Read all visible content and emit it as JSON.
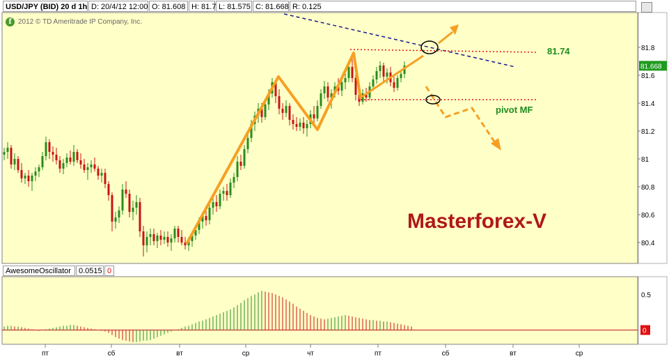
{
  "header": {
    "symbol": "USD/JPY (BID) 20 d 1h",
    "date": "D: 20/4/12 12:00",
    "open": "O: 81.608",
    "high": "H: 81.7",
    "low": "L: 81.575",
    "close": "C: 81.668",
    "range": "R: 0.125"
  },
  "copyright": "2012 © TD Ameritrade IP Company, Inc.",
  "logo_glyph": "f",
  "oscillator": {
    "name": "AwesomeOscillator",
    "value": "0.0515",
    "zero_value": "0",
    "current_label": "0"
  },
  "annotations": {
    "level_label": "81.74",
    "pivot_label": "pivot MF",
    "watermark": "Masterforex-V"
  },
  "colors": {
    "plot_bg": "#ffffc8",
    "bull": "#2a8c1e",
    "bear": "#c81414",
    "orange": "#f5a023",
    "blue_dashed": "#1a1a8c",
    "red_dotted": "#e01010",
    "label_green": "#1e8c1e",
    "watermark": "#b01818"
  },
  "chart_data": [
    {
      "type": "candlestick",
      "ylim": [
        80.25,
        82.05
      ],
      "price_ticks": [
        "81.8",
        "81.6",
        "81.4",
        "81.2",
        "81",
        "80.8",
        "80.6",
        "80.4"
      ],
      "current_price": "81.668",
      "x_labels": [
        "пт",
        "сб",
        "вт",
        "ср",
        "чт",
        "пт",
        "сб",
        "вт",
        "ср"
      ],
      "candles": [
        [
          81.03,
          81.08,
          80.99,
          81.05
        ],
        [
          81.05,
          81.12,
          81.0,
          81.08
        ],
        [
          81.08,
          81.1,
          80.93,
          80.96
        ],
        [
          80.96,
          81.04,
          80.92,
          81.0
        ],
        [
          81.0,
          81.02,
          80.9,
          80.92
        ],
        [
          80.92,
          80.97,
          80.83,
          80.86
        ],
        [
          80.86,
          80.9,
          80.82,
          80.88
        ],
        [
          80.88,
          80.92,
          80.8,
          80.84
        ],
        [
          80.84,
          80.9,
          80.77,
          80.88
        ],
        [
          80.88,
          80.94,
          80.84,
          80.91
        ],
        [
          80.91,
          80.96,
          80.87,
          80.94
        ],
        [
          80.94,
          81.05,
          80.92,
          81.02
        ],
        [
          81.02,
          81.16,
          80.99,
          81.12
        ],
        [
          81.12,
          81.14,
          81.0,
          81.05
        ],
        [
          81.05,
          81.09,
          80.98,
          81.03
        ],
        [
          81.03,
          81.08,
          80.96,
          80.99
        ],
        [
          80.99,
          81.02,
          80.9,
          80.93
        ],
        [
          80.93,
          81.0,
          80.89,
          80.97
        ],
        [
          80.97,
          81.04,
          80.94,
          81.01
        ],
        [
          81.01,
          81.06,
          80.96,
          80.98
        ],
        [
          80.98,
          81.1,
          80.95,
          81.05
        ],
        [
          81.05,
          81.07,
          80.97,
          80.99
        ],
        [
          80.99,
          81.04,
          80.93,
          80.96
        ],
        [
          80.96,
          81.0,
          80.9,
          80.92
        ],
        [
          80.92,
          80.97,
          80.85,
          80.94
        ],
        [
          80.94,
          80.99,
          80.9,
          80.96
        ],
        [
          80.96,
          81.01,
          80.91,
          80.93
        ],
        [
          80.93,
          80.95,
          80.85,
          80.88
        ],
        [
          80.88,
          80.93,
          80.83,
          80.9
        ],
        [
          80.9,
          80.93,
          80.79,
          80.82
        ],
        [
          80.82,
          80.84,
          80.7,
          80.74
        ],
        [
          80.74,
          80.76,
          80.48,
          80.55
        ],
        [
          80.55,
          80.62,
          80.5,
          80.58
        ],
        [
          80.58,
          80.66,
          80.54,
          80.63
        ],
        [
          80.63,
          80.82,
          80.6,
          80.78
        ],
        [
          80.78,
          80.84,
          80.72,
          80.75
        ],
        [
          80.75,
          80.78,
          80.58,
          80.62
        ],
        [
          80.62,
          80.7,
          80.56,
          80.65
        ],
        [
          80.65,
          80.74,
          80.6,
          80.69
        ],
        [
          80.69,
          80.72,
          80.44,
          80.48
        ],
        [
          80.48,
          80.52,
          80.3,
          80.38
        ],
        [
          80.38,
          80.48,
          80.33,
          80.44
        ],
        [
          80.44,
          80.5,
          80.38,
          80.46
        ],
        [
          80.46,
          80.5,
          80.38,
          80.41
        ],
        [
          80.41,
          80.47,
          80.36,
          80.45
        ],
        [
          80.45,
          80.49,
          80.38,
          80.42
        ],
        [
          80.42,
          80.48,
          80.39,
          80.44
        ],
        [
          80.44,
          80.48,
          80.37,
          80.4
        ],
        [
          80.4,
          80.46,
          80.34,
          80.43
        ],
        [
          80.43,
          80.52,
          80.4,
          80.5
        ],
        [
          80.5,
          80.52,
          80.4,
          80.44
        ],
        [
          80.44,
          80.49,
          80.38,
          80.4
        ],
        [
          80.4,
          80.44,
          80.35,
          80.38
        ],
        [
          80.38,
          80.44,
          80.34,
          80.41
        ],
        [
          80.41,
          80.48,
          80.37,
          80.45
        ],
        [
          80.45,
          80.52,
          80.42,
          80.49
        ],
        [
          80.49,
          80.58,
          80.46,
          80.55
        ],
        [
          80.55,
          80.62,
          80.5,
          80.59
        ],
        [
          80.59,
          80.64,
          80.52,
          80.56
        ],
        [
          80.56,
          80.68,
          80.53,
          80.65
        ],
        [
          80.65,
          80.72,
          80.6,
          80.69
        ],
        [
          80.69,
          80.74,
          80.62,
          80.66
        ],
        [
          80.66,
          80.78,
          80.64,
          80.75
        ],
        [
          80.75,
          80.8,
          80.7,
          80.77
        ],
        [
          80.77,
          80.82,
          80.7,
          80.74
        ],
        [
          80.74,
          80.86,
          80.72,
          80.83
        ],
        [
          80.83,
          80.9,
          80.79,
          80.87
        ],
        [
          80.87,
          81.02,
          80.84,
          80.98
        ],
        [
          80.98,
          81.03,
          80.92,
          80.95
        ],
        [
          80.95,
          81.1,
          80.93,
          81.07
        ],
        [
          81.07,
          81.18,
          81.04,
          81.15
        ],
        [
          81.15,
          81.28,
          81.12,
          81.25
        ],
        [
          81.25,
          81.34,
          81.2,
          81.31
        ],
        [
          81.31,
          81.4,
          81.26,
          81.36
        ],
        [
          81.36,
          81.4,
          81.26,
          81.3
        ],
        [
          81.3,
          81.42,
          81.28,
          81.39
        ],
        [
          81.39,
          81.5,
          81.35,
          81.47
        ],
        [
          81.47,
          81.58,
          81.44,
          81.55
        ],
        [
          81.55,
          81.56,
          81.4,
          81.45
        ],
        [
          81.45,
          81.5,
          81.32,
          81.36
        ],
        [
          81.36,
          81.4,
          81.28,
          81.33
        ],
        [
          81.33,
          81.42,
          81.3,
          81.38
        ],
        [
          81.38,
          81.4,
          81.24,
          81.28
        ],
        [
          81.28,
          81.32,
          81.21,
          81.25
        ],
        [
          81.25,
          81.3,
          81.2,
          81.23
        ],
        [
          81.23,
          81.29,
          81.2,
          81.26
        ],
        [
          81.26,
          81.3,
          81.18,
          81.22
        ],
        [
          81.22,
          81.28,
          81.16,
          81.25
        ],
        [
          81.25,
          81.35,
          81.22,
          81.32
        ],
        [
          81.32,
          81.38,
          81.25,
          81.29
        ],
        [
          81.29,
          81.42,
          81.27,
          81.38
        ],
        [
          81.38,
          81.5,
          81.36,
          81.47
        ],
        [
          81.47,
          81.56,
          81.43,
          81.52
        ],
        [
          81.52,
          81.55,
          81.41,
          81.44
        ],
        [
          81.44,
          81.5,
          81.36,
          81.47
        ],
        [
          81.47,
          81.55,
          81.44,
          81.52
        ],
        [
          81.52,
          81.58,
          81.46,
          81.49
        ],
        [
          81.49,
          81.58,
          81.45,
          81.55
        ],
        [
          81.55,
          81.62,
          81.5,
          81.58
        ],
        [
          81.58,
          81.7,
          81.55,
          81.66
        ],
        [
          81.66,
          81.73,
          81.55,
          81.58
        ],
        [
          81.58,
          81.62,
          81.42,
          81.46
        ],
        [
          81.46,
          81.52,
          81.38,
          81.41
        ],
        [
          81.41,
          81.5,
          81.39,
          81.47
        ],
        [
          81.47,
          81.51,
          81.41,
          81.44
        ],
        [
          81.44,
          81.55,
          81.42,
          81.52
        ],
        [
          81.52,
          81.6,
          81.49,
          81.57
        ],
        [
          81.57,
          81.66,
          81.54,
          81.63
        ],
        [
          81.63,
          81.7,
          81.58,
          81.67
        ],
        [
          81.67,
          81.69,
          81.55,
          81.59
        ],
        [
          81.59,
          81.65,
          81.54,
          81.62
        ],
        [
          81.62,
          81.66,
          81.52,
          81.55
        ],
        [
          81.55,
          81.59,
          81.48,
          81.51
        ],
        [
          81.51,
          81.6,
          81.49,
          81.58
        ],
        [
          81.58,
          81.64,
          81.55,
          81.61
        ],
        [
          81.61,
          81.7,
          81.58,
          81.67
        ]
      ]
    },
    {
      "type": "bar",
      "title": "AwesomeOscillator",
      "ylim": [
        -0.2,
        0.75
      ],
      "ticks": [
        "0.5",
        "0"
      ],
      "values": [
        0.05,
        0.06,
        0.06,
        0.05,
        0.05,
        0.04,
        0.03,
        0.02,
        0.01,
        0.0,
        -0.01,
        0.0,
        0.01,
        0.02,
        0.03,
        0.04,
        0.05,
        0.06,
        0.06,
        0.07,
        0.07,
        0.06,
        0.05,
        0.04,
        0.03,
        0.02,
        0.01,
        0.0,
        -0.01,
        -0.02,
        -0.04,
        -0.07,
        -0.1,
        -0.12,
        -0.14,
        -0.15,
        -0.16,
        -0.17,
        -0.17,
        -0.16,
        -0.15,
        -0.15,
        -0.14,
        -0.12,
        -0.1,
        -0.08,
        -0.06,
        -0.04,
        -0.02,
        0.0,
        0.01,
        0.03,
        0.05,
        0.06,
        0.08,
        0.1,
        0.12,
        0.13,
        0.15,
        0.17,
        0.19,
        0.21,
        0.23,
        0.25,
        0.27,
        0.29,
        0.32,
        0.35,
        0.38,
        0.42,
        0.45,
        0.48,
        0.5,
        0.53,
        0.55,
        0.54,
        0.53,
        0.52,
        0.5,
        0.48,
        0.46,
        0.43,
        0.4,
        0.37,
        0.33,
        0.3,
        0.27,
        0.24,
        0.21,
        0.19,
        0.17,
        0.16,
        0.15,
        0.16,
        0.17,
        0.18,
        0.19,
        0.2,
        0.21,
        0.2,
        0.19,
        0.18,
        0.17,
        0.16,
        0.15,
        0.14,
        0.14,
        0.13,
        0.13,
        0.12,
        0.12,
        0.11,
        0.1,
        0.09,
        0.08,
        0.07,
        0.06,
        0.05
      ]
    }
  ]
}
